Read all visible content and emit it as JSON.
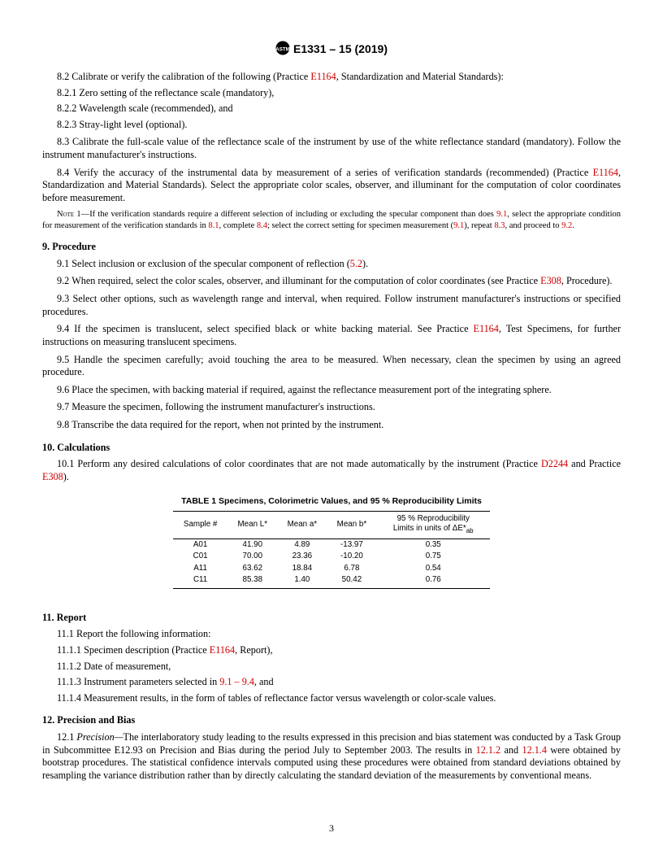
{
  "header": {
    "designation": "E1331 – 15 (2019)"
  },
  "s8": {
    "p82": {
      "num": "8.2",
      "text_a": "Calibrate or verify the calibration of the following (Practice ",
      "ref": "E1164",
      "text_b": ", Standardization and Material Standards):"
    },
    "p821": {
      "num": "8.2.1",
      "text": "Zero setting of the reflectance scale (mandatory),"
    },
    "p822": {
      "num": "8.2.2",
      "text": "Wavelength scale (recommended), and"
    },
    "p823": {
      "num": "8.2.3",
      "text": "Stray-light level (optional)."
    },
    "p83": {
      "num": "8.3",
      "text": "Calibrate the full-scale value of the reflectance scale of the instrument by use of the white reflectance standard (mandatory). Follow the instrument manufacturer's instructions."
    },
    "p84": {
      "num": "8.4",
      "text_a": "Verify the accuracy of the instrumental data by measurement of a series of verification standards (recommended) (Practice ",
      "ref": "E1164",
      "text_b": ", Standardization and Material Standards). Select the appropriate color scales, observer, and illuminant for the computation of color coordinates before measurement."
    },
    "note1": {
      "label": "Note 1",
      "t1": "—If the verification standards require a different selection of including or excluding the specular component than does ",
      "r1": "9.1",
      "t2": ", select the appropriate condition for measurement of the verification standards in ",
      "r2": "8.1",
      "t3": ", complete ",
      "r3": "8.4",
      "t4": "; select the correct setting for specimen measurement (",
      "r4": "9.1",
      "t5": "), repeat ",
      "r5": "8.3",
      "t6": ", and proceed to ",
      "r6": "9.2",
      "t7": "."
    }
  },
  "s9": {
    "head": "9.  Procedure",
    "p91": {
      "num": "9.1",
      "t1": "Select inclusion or exclusion of the specular component of reflection (",
      "ref": "5.2",
      "t2": ")."
    },
    "p92": {
      "num": "9.2",
      "t1": "When required, select the color scales, observer, and illuminant for the computation of color coordinates (see Practice ",
      "ref": "E308",
      "t2": ", Procedure)."
    },
    "p93": {
      "num": "9.3",
      "text": "Select other options, such as wavelength range and interval, when required. Follow instrument manufacturer's instructions or specified procedures."
    },
    "p94": {
      "num": "9.4",
      "t1": "If the specimen is translucent, select specified black or white backing material. See Practice ",
      "ref": "E1164",
      "t2": ", Test Specimens, for further instructions on measuring translucent specimens."
    },
    "p95": {
      "num": "9.5",
      "text": "Handle the specimen carefully; avoid touching the area to be measured. When necessary, clean the specimen by using an agreed procedure."
    },
    "p96": {
      "num": "9.6",
      "text": "Place the specimen, with backing material if required, against the reflectance measurement port of the integrating sphere."
    },
    "p97": {
      "num": "9.7",
      "text": "Measure the specimen, following the instrument manufacturer's instructions."
    },
    "p98": {
      "num": "9.8",
      "text": "Transcribe the data required for the report, when not printed by the instrument."
    }
  },
  "s10": {
    "head": "10.  Calculations",
    "p101": {
      "num": "10.1",
      "t1": "Perform any desired calculations of color coordinates that are not made automatically by the instrument (Practice ",
      "ref1": "D2244",
      "t2": " and Practice ",
      "ref2": "E308",
      "t3": ")."
    }
  },
  "table1": {
    "title": "TABLE 1 Specimens, Colorimetric Values, and 95 % Reproducibility Limits",
    "headers": {
      "c1": "Sample #",
      "c2": "Mean L*",
      "c3": "Mean a*",
      "c4": "Mean b*",
      "c5a": "95 % Reproducibility",
      "c5b": "Limits in units of ΔE*",
      "c5sub": "ab"
    },
    "rows": [
      {
        "c1": "A01",
        "c2": "41.90",
        "c3": "4.89",
        "c4": "-13.97",
        "c5": "0.35"
      },
      {
        "c1": "C01",
        "c2": "70.00",
        "c3": "23.36",
        "c4": "-10.20",
        "c5": "0.75"
      },
      {
        "c1": "A11",
        "c2": "63.62",
        "c3": "18.84",
        "c4": "6.78",
        "c5": "0.54"
      },
      {
        "c1": "C11",
        "c2": "85.38",
        "c3": "1.40",
        "c4": "50.42",
        "c5": "0.76"
      }
    ]
  },
  "s11": {
    "head": "11.  Report",
    "p111": {
      "num": "11.1",
      "text": "Report the following information:"
    },
    "p1111": {
      "num": "11.1.1",
      "t1": "Specimen description (Practice ",
      "ref": "E1164",
      "t2": ", Report),"
    },
    "p1112": {
      "num": "11.1.2",
      "text": "Date of measurement,"
    },
    "p1113": {
      "num": "11.1.3",
      "t1": "Instrument parameters selected in ",
      "ref": "9.1 – 9.4",
      "t2": ", and"
    },
    "p1114": {
      "num": "11.1.4",
      "text": "Measurement results, in the form of tables of reflectance factor versus wavelength or color-scale values."
    }
  },
  "s12": {
    "head": "12.  Precision and Bias",
    "p121": {
      "num": "12.1",
      "lead_i": "Precision—",
      "t1": "The interlaboratory study leading to the results expressed in this precision and bias statement was conducted by a Task Group in Subcommittee E12.93 on Precision and Bias during the period July to September 2003. The results in ",
      "ref1": "12.1.2",
      "t2": " and ",
      "ref2": "12.1.4",
      "t3": " were obtained by bootstrap procedures. The statistical confidence intervals computed using these procedures were obtained from standard deviations obtained by resampling the variance distribution rather than by directly calculating the standard deviation of the measurements by conventional means."
    }
  },
  "page": "3"
}
